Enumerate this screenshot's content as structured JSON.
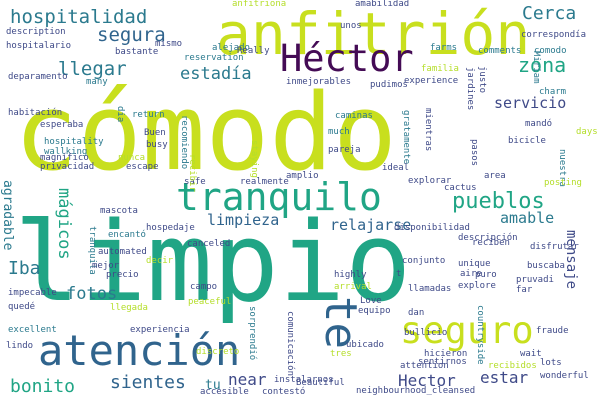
{
  "words": [
    {
      "text": "cómodo",
      "color": "#c8df1e"
    },
    {
      "text": "limpio",
      "color": "#20a585"
    },
    {
      "text": "anfitrión",
      "color": "#c8df1e"
    },
    {
      "text": "Héctor",
      "color": "#440b55"
    },
    {
      "text": "atención",
      "color": "#30648d"
    },
    {
      "text": "tranquilo",
      "color": "#20a585"
    },
    {
      "text": "seguro",
      "color": "#c8df1e"
    },
    {
      "text": "te",
      "color": "#30648d"
    },
    {
      "text": "hospitalidad",
      "color": "#2b7a8e"
    },
    {
      "text": "pueblos",
      "color": "#20a585"
    },
    {
      "text": "zona",
      "color": "#20a585"
    },
    {
      "text": "llegar",
      "color": "#2b7a8e"
    },
    {
      "text": "estadía",
      "color": "#2b7a8e"
    },
    {
      "text": "Cerca",
      "color": "#2b7a8e"
    },
    {
      "text": "segura",
      "color": "#30648d"
    },
    {
      "text": "servicio",
      "color": "#3f4a88"
    },
    {
      "text": "amable",
      "color": "#2b7a8e"
    },
    {
      "text": "mágicos",
      "color": "#20a585"
    },
    {
      "text": "fotos",
      "color": "#2b7a8e"
    },
    {
      "text": "Iba",
      "color": "#2b7a8e"
    },
    {
      "text": "agradable",
      "color": "#2b7a8e"
    },
    {
      "text": "limpieza",
      "color": "#30648d"
    },
    {
      "text": "relajarse",
      "color": "#30648d"
    },
    {
      "text": "mensaje",
      "color": "#3f4a88"
    },
    {
      "text": "bonito",
      "color": "#20a585"
    },
    {
      "text": "sientes",
      "color": "#30648d"
    },
    {
      "text": "near",
      "color": "#3f4a88"
    },
    {
      "text": "Hector",
      "color": "#3f4a88"
    },
    {
      "text": "estar",
      "color": "#3f4a88"
    },
    {
      "text": "tu",
      "color": "#2b7a8e"
    },
    {
      "text": "anfitriona",
      "color": "#b5de2b"
    },
    {
      "text": "amabilidad",
      "color": "#3f4a88"
    },
    {
      "text": "correspondía",
      "color": "#3f4a88"
    },
    {
      "text": "description",
      "color": "#3f4a88"
    },
    {
      "text": "hospitalario",
      "color": "#3f4a88"
    },
    {
      "text": "bastante",
      "color": "#3f4a88"
    },
    {
      "text": "mismo",
      "color": "#3f4a88"
    },
    {
      "text": "alejado",
      "color": "#2b7a8e"
    },
    {
      "text": "reservation",
      "color": "#2b7a8e"
    },
    {
      "text": "Really",
      "color": "#3f4a88"
    },
    {
      "text": "unos",
      "color": "#3f4a88"
    },
    {
      "text": "farms",
      "color": "#2b7a8e"
    },
    {
      "text": "comments",
      "color": "#2b7a8e"
    },
    {
      "text": "comodo",
      "color": "#2b7a8e"
    },
    {
      "text": "Miriam",
      "color": "#2b7a8e"
    },
    {
      "text": "charm",
      "color": "#2b7a8e"
    },
    {
      "text": "familia",
      "color": "#b5de2b"
    },
    {
      "text": "justo",
      "color": "#3f4a88"
    },
    {
      "text": "experience",
      "color": "#3f4a88"
    },
    {
      "text": "jardines",
      "color": "#3f4a88"
    },
    {
      "text": "inmejorables",
      "color": "#3f4a88"
    },
    {
      "text": "pudimos",
      "color": "#3f4a88"
    },
    {
      "text": "deparamento",
      "color": "#3f4a88"
    },
    {
      "text": "many",
      "color": "#2b7a8e"
    },
    {
      "text": "habitación",
      "color": "#3f4a88"
    },
    {
      "text": "esperaba",
      "color": "#3f4a88"
    },
    {
      "text": "hospitality",
      "color": "#2b7a8e"
    },
    {
      "text": "wallking",
      "color": "#2b7a8e"
    },
    {
      "text": "dia",
      "color": "#2b7a8e"
    },
    {
      "text": "return",
      "color": "#2b7a8e"
    },
    {
      "text": "recomiendo",
      "color": "#2b7a8e"
    },
    {
      "text": "Buen",
      "color": "#3f4a88"
    },
    {
      "text": "busy",
      "color": "#3f4a88"
    },
    {
      "text": "caminas",
      "color": "#2b7a8e"
    },
    {
      "text": "much",
      "color": "#2b7a8e"
    },
    {
      "text": "pareja",
      "color": "#3f4a88"
    },
    {
      "text": "gratamente",
      "color": "#2b7a8e"
    },
    {
      "text": "mientras",
      "color": "#3f4a88"
    },
    {
      "text": "mandó",
      "color": "#3f4a88"
    },
    {
      "text": "bicicle",
      "color": "#3f4a88"
    },
    {
      "text": "pasos",
      "color": "#3f4a88"
    },
    {
      "text": "days",
      "color": "#b5de2b"
    },
    {
      "text": "nuestra",
      "color": "#2b7a8e"
    },
    {
      "text": "magnífico",
      "color": "#3f4a88"
    },
    {
      "text": "privacidad",
      "color": "#3f4a88"
    },
    {
      "text": "nunca",
      "color": "#b5de2b"
    },
    {
      "text": "escape",
      "color": "#3f4a88"
    },
    {
      "text": "safe",
      "color": "#3f4a88"
    },
    {
      "text": "realmente",
      "color": "#3f4a88"
    },
    {
      "text": "amplio",
      "color": "#3f4a88"
    },
    {
      "text": "staying",
      "color": "#b5de2b"
    },
    {
      "text": "recibir",
      "color": "#b5de2b"
    },
    {
      "text": "ideal",
      "color": "#3f4a88"
    },
    {
      "text": "explorar",
      "color": "#3f4a88"
    },
    {
      "text": "cactus",
      "color": "#3f4a88"
    },
    {
      "text": "area",
      "color": "#3f4a88"
    },
    {
      "text": "posting",
      "color": "#b5de2b"
    },
    {
      "text": "mascota",
      "color": "#3f4a88"
    },
    {
      "text": "hospedaje",
      "color": "#3f4a88"
    },
    {
      "text": "encantó",
      "color": "#2b7a8e"
    },
    {
      "text": "tranquila",
      "color": "#2b7a8e"
    },
    {
      "text": "canceled",
      "color": "#3f4a88"
    },
    {
      "text": "automated",
      "color": "#3f4a88"
    },
    {
      "text": "mejor",
      "color": "#3f4a88"
    },
    {
      "text": "disponibilidad",
      "color": "#3f4a88"
    },
    {
      "text": "descripción",
      "color": "#3f4a88"
    },
    {
      "text": "reciben",
      "color": "#3f4a88"
    },
    {
      "text": "disfrutar",
      "color": "#3f4a88"
    },
    {
      "text": "precio",
      "color": "#3f4a88"
    },
    {
      "text": "decir",
      "color": "#b5de2b"
    },
    {
      "text": "conjunto",
      "color": "#3f4a88"
    },
    {
      "text": "unique",
      "color": "#3f4a88"
    },
    {
      "text": "puro",
      "color": "#3f4a88"
    },
    {
      "text": "buscaba",
      "color": "#3f4a88"
    },
    {
      "text": "campo",
      "color": "#3f4a88"
    },
    {
      "text": "highly",
      "color": "#3f4a88"
    },
    {
      "text": "arrival",
      "color": "#b5de2b"
    },
    {
      "text": "t",
      "color": "#3f4a88"
    },
    {
      "text": "aire",
      "color": "#3f4a88"
    },
    {
      "text": "pruvadi",
      "color": "#3f4a88"
    },
    {
      "text": "far",
      "color": "#3f4a88"
    },
    {
      "text": "impecable",
      "color": "#3f4a88"
    },
    {
      "text": "quedé",
      "color": "#3f4a88"
    },
    {
      "text": "llegada",
      "color": "#b5de2b"
    },
    {
      "text": "peaceful",
      "color": "#b5de2b"
    },
    {
      "text": "explore",
      "color": "#3f4a88"
    },
    {
      "text": "llamadas",
      "color": "#3f4a88"
    },
    {
      "text": "Love",
      "color": "#3f4a88"
    },
    {
      "text": "equipo",
      "color": "#3f4a88"
    },
    {
      "text": "dan",
      "color": "#3f4a88"
    },
    {
      "text": "countryside",
      "color": "#2b7a8e"
    },
    {
      "text": "excellent",
      "color": "#2b7a8e"
    },
    {
      "text": "experiencia",
      "color": "#3f4a88"
    },
    {
      "text": "sorprendió",
      "color": "#2b7a8e"
    },
    {
      "text": "comunicación",
      "color": "#3f4a88"
    },
    {
      "text": "bullicio",
      "color": "#3f4a88"
    },
    {
      "text": "fraude",
      "color": "#3f4a88"
    },
    {
      "text": "lindo",
      "color": "#3f4a88"
    },
    {
      "text": "ubicado",
      "color": "#3f4a88"
    },
    {
      "text": "wait",
      "color": "#3f4a88"
    },
    {
      "text": "discreto",
      "color": "#b5de2b"
    },
    {
      "text": "tres",
      "color": "#b5de2b"
    },
    {
      "text": "hicieron",
      "color": "#3f4a88"
    },
    {
      "text": "sentirnos",
      "color": "#3f4a88"
    },
    {
      "text": "lots",
      "color": "#3f4a88"
    },
    {
      "text": "wonderful",
      "color": "#3f4a88"
    },
    {
      "text": "attention",
      "color": "#3f4a88"
    },
    {
      "text": "recibidos",
      "color": "#b5de2b"
    },
    {
      "text": "instalarnos",
      "color": "#3f4a88"
    },
    {
      "text": "Beautiful",
      "color": "#3f4a88"
    },
    {
      "text": "accesible",
      "color": "#3f4a88"
    },
    {
      "text": "contestó",
      "color": "#3f4a88"
    },
    {
      "text": "neighbourhood_cleansed",
      "color": "#3f4a88"
    }
  ]
}
